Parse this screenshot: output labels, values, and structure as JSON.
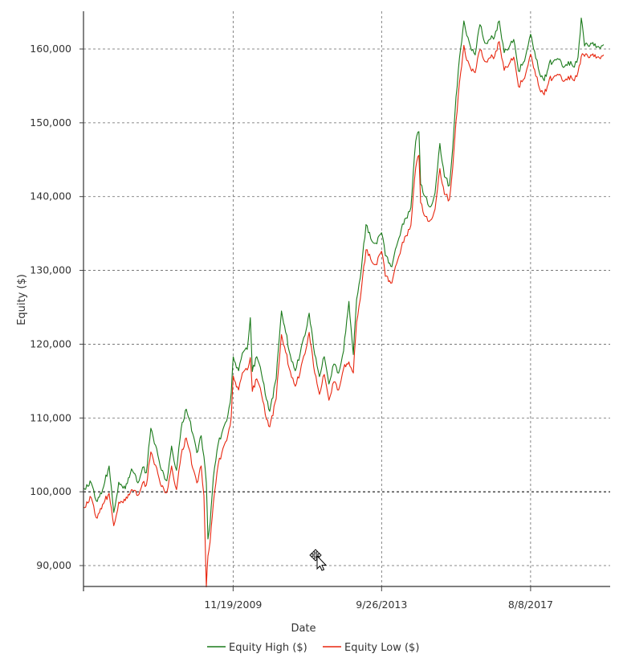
{
  "chart_data": {
    "type": "line",
    "xlabel": "Date",
    "ylabel": "Equity ($)",
    "x_ticks": [
      "11/19/2009",
      "9/26/2013",
      "8/8/2017"
    ],
    "y_ticks": [
      "90,000",
      "100,000",
      "110,000",
      "120,000",
      "130,000",
      "140,000",
      "150,000",
      "160,000"
    ],
    "y_tick_values": [
      90000,
      100000,
      110000,
      120000,
      130000,
      140000,
      150000,
      160000
    ],
    "x_tick_dates": [
      "2009-11-19",
      "2013-09-26",
      "2017-08-08"
    ],
    "xlim": [
      "2006-01-01",
      "2019-09-01"
    ],
    "ylim": [
      87000,
      165000
    ],
    "reference_line": 100000,
    "grid": true,
    "legend_position": "bottom",
    "series": [
      {
        "name": "Equity High ($)",
        "color": "#1a7a1a",
        "points": [
          [
            "2006-01-01",
            100500
          ],
          [
            "2006-03-15",
            101200
          ],
          [
            "2006-05-01",
            98800
          ],
          [
            "2006-07-01",
            100300
          ],
          [
            "2006-09-01",
            103500
          ],
          [
            "2006-10-15",
            97200
          ],
          [
            "2006-12-01",
            101300
          ],
          [
            "2007-02-01",
            100400
          ],
          [
            "2007-04-01",
            103100
          ],
          [
            "2007-06-01",
            101200
          ],
          [
            "2007-07-15",
            103300
          ],
          [
            "2007-08-20",
            102600
          ],
          [
            "2007-10-01",
            108600
          ],
          [
            "2007-11-15",
            106300
          ],
          [
            "2008-01-10",
            102900
          ],
          [
            "2008-03-01",
            101500
          ],
          [
            "2008-04-15",
            106200
          ],
          [
            "2008-06-01",
            102900
          ],
          [
            "2008-07-15",
            108600
          ],
          [
            "2008-09-01",
            111200
          ],
          [
            "2008-10-01",
            109800
          ],
          [
            "2008-11-01",
            107900
          ],
          [
            "2008-12-10",
            105300
          ],
          [
            "2009-01-20",
            107600
          ],
          [
            "2009-02-15",
            104800
          ],
          [
            "2009-03-10",
            101200
          ],
          [
            "2009-03-25",
            93600
          ],
          [
            "2009-04-15",
            95700
          ],
          [
            "2009-05-15",
            101900
          ],
          [
            "2009-07-01",
            106500
          ],
          [
            "2009-08-15",
            108500
          ],
          [
            "2009-10-01",
            110400
          ],
          [
            "2009-11-01",
            113400
          ],
          [
            "2009-11-20",
            118300
          ],
          [
            "2010-01-10",
            116400
          ],
          [
            "2010-02-15",
            118800
          ],
          [
            "2010-04-01",
            119300
          ],
          [
            "2010-05-01",
            123600
          ],
          [
            "2010-05-20",
            116300
          ],
          [
            "2010-07-01",
            118300
          ],
          [
            "2010-08-15",
            116000
          ],
          [
            "2010-10-01",
            112500
          ],
          [
            "2010-11-01",
            110900
          ],
          [
            "2011-01-01",
            115300
          ],
          [
            "2011-02-20",
            124500
          ],
          [
            "2011-04-01",
            121600
          ],
          [
            "2011-05-15",
            118500
          ],
          [
            "2011-07-01",
            116400
          ],
          [
            "2011-08-15",
            118600
          ],
          [
            "2011-10-01",
            121200
          ],
          [
            "2011-11-10",
            124200
          ],
          [
            "2012-01-01",
            118600
          ],
          [
            "2012-02-15",
            115600
          ],
          [
            "2012-04-01",
            118300
          ],
          [
            "2012-05-15",
            114600
          ],
          [
            "2012-07-01",
            117300
          ],
          [
            "2012-08-15",
            116100
          ],
          [
            "2012-10-01",
            119100
          ],
          [
            "2012-11-20",
            125800
          ],
          [
            "2013-01-01",
            118600
          ],
          [
            "2013-02-01",
            126100
          ],
          [
            "2013-03-20",
            130400
          ],
          [
            "2013-05-01",
            136200
          ],
          [
            "2013-06-15",
            134300
          ],
          [
            "2013-08-01",
            133700
          ],
          [
            "2013-09-26",
            135100
          ],
          [
            "2013-11-01",
            132000
          ],
          [
            "2014-01-01",
            130500
          ],
          [
            "2014-02-15",
            133300
          ],
          [
            "2014-04-01",
            135600
          ],
          [
            "2014-05-15",
            137100
          ],
          [
            "2014-07-01",
            138500
          ],
          [
            "2014-08-15",
            147500
          ],
          [
            "2014-09-15",
            148800
          ],
          [
            "2014-10-01",
            141700
          ],
          [
            "2014-11-15",
            140000
          ],
          [
            "2015-01-01",
            138600
          ],
          [
            "2015-02-15",
            140500
          ],
          [
            "2015-04-01",
            147200
          ],
          [
            "2015-05-15",
            142700
          ],
          [
            "2015-07-01",
            141500
          ],
          [
            "2015-08-01",
            146600
          ],
          [
            "2015-09-01",
            153500
          ],
          [
            "2015-10-15",
            160100
          ],
          [
            "2015-11-15",
            163800
          ],
          [
            "2015-12-01",
            162600
          ],
          [
            "2016-01-15",
            160400
          ],
          [
            "2016-03-01",
            159200
          ],
          [
            "2016-04-15",
            163300
          ],
          [
            "2016-06-01",
            160800
          ],
          [
            "2016-07-15",
            161300
          ],
          [
            "2016-09-01",
            161700
          ],
          [
            "2016-10-15",
            163800
          ],
          [
            "2016-12-01",
            159500
          ],
          [
            "2017-01-15",
            160200
          ],
          [
            "2017-03-01",
            161300
          ],
          [
            "2017-04-15",
            157000
          ],
          [
            "2017-06-01",
            158200
          ],
          [
            "2017-07-15",
            160400
          ],
          [
            "2017-08-08",
            162000
          ],
          [
            "2017-09-15",
            159700
          ],
          [
            "2017-11-01",
            156700
          ],
          [
            "2017-12-15",
            155700
          ],
          [
            "2018-02-01",
            158100
          ],
          [
            "2018-03-15",
            158400
          ],
          [
            "2018-05-01",
            158600
          ],
          [
            "2018-06-15",
            157500
          ],
          [
            "2018-08-01",
            158300
          ],
          [
            "2018-09-15",
            157600
          ],
          [
            "2018-11-01",
            158900
          ],
          [
            "2018-12-01",
            164200
          ],
          [
            "2019-01-01",
            160400
          ],
          [
            "2019-03-01",
            160800
          ],
          [
            "2019-05-01",
            160300
          ],
          [
            "2019-07-01",
            160600
          ]
        ]
      },
      {
        "name": "Equity Low ($)",
        "color": "#e8260f",
        "points": [
          [
            "2006-01-01",
            97900
          ],
          [
            "2006-03-15",
            99200
          ],
          [
            "2006-05-01",
            96500
          ],
          [
            "2006-07-01",
            98300
          ],
          [
            "2006-09-01",
            99800
          ],
          [
            "2006-10-15",
            95400
          ],
          [
            "2006-12-01",
            98600
          ],
          [
            "2007-02-01",
            98800
          ],
          [
            "2007-04-01",
            100300
          ],
          [
            "2007-06-01",
            99500
          ],
          [
            "2007-07-15",
            101200
          ],
          [
            "2007-08-20",
            100900
          ],
          [
            "2007-10-01",
            105400
          ],
          [
            "2007-11-15",
            103600
          ],
          [
            "2008-01-10",
            100700
          ],
          [
            "2008-03-01",
            99900
          ],
          [
            "2008-04-15",
            103500
          ],
          [
            "2008-06-01",
            100300
          ],
          [
            "2008-07-15",
            105000
          ],
          [
            "2008-09-01",
            107300
          ],
          [
            "2008-10-01",
            105700
          ],
          [
            "2008-11-01",
            103200
          ],
          [
            "2008-12-10",
            101200
          ],
          [
            "2009-01-20",
            103500
          ],
          [
            "2009-02-15",
            99500
          ],
          [
            "2009-03-10",
            87100
          ],
          [
            "2009-03-25",
            91300
          ],
          [
            "2009-04-15",
            93200
          ],
          [
            "2009-05-15",
            98400
          ],
          [
            "2009-07-01",
            103700
          ],
          [
            "2009-08-15",
            105900
          ],
          [
            "2009-10-01",
            107700
          ],
          [
            "2009-11-01",
            110100
          ],
          [
            "2009-11-20",
            115700
          ],
          [
            "2010-01-10",
            113800
          ],
          [
            "2010-02-15",
            116100
          ],
          [
            "2010-04-01",
            116500
          ],
          [
            "2010-05-01",
            118200
          ],
          [
            "2010-05-20",
            113600
          ],
          [
            "2010-07-01",
            115300
          ],
          [
            "2010-08-15",
            113200
          ],
          [
            "2010-10-01",
            109800
          ],
          [
            "2010-11-01",
            108800
          ],
          [
            "2011-01-01",
            112600
          ],
          [
            "2011-02-20",
            121300
          ],
          [
            "2011-04-01",
            118900
          ],
          [
            "2011-05-15",
            116300
          ],
          [
            "2011-07-01",
            114300
          ],
          [
            "2011-08-15",
            116100
          ],
          [
            "2011-10-01",
            118700
          ],
          [
            "2011-11-10",
            121600
          ],
          [
            "2012-01-01",
            116100
          ],
          [
            "2012-02-15",
            113200
          ],
          [
            "2012-04-01",
            115900
          ],
          [
            "2012-05-15",
            112400
          ],
          [
            "2012-07-01",
            114900
          ],
          [
            "2012-08-15",
            113800
          ],
          [
            "2012-10-01",
            116700
          ],
          [
            "2012-11-20",
            117600
          ],
          [
            "2013-01-01",
            116100
          ],
          [
            "2013-02-01",
            123000
          ],
          [
            "2013-03-20",
            127600
          ],
          [
            "2013-05-01",
            132800
          ],
          [
            "2013-06-15",
            131500
          ],
          [
            "2013-08-01",
            130800
          ],
          [
            "2013-09-26",
            132600
          ],
          [
            "2013-11-01",
            129200
          ],
          [
            "2014-01-01",
            128300
          ],
          [
            "2014-02-15",
            130900
          ],
          [
            "2014-04-01",
            133100
          ],
          [
            "2014-05-15",
            134700
          ],
          [
            "2014-07-01",
            136100
          ],
          [
            "2014-08-15",
            143900
          ],
          [
            "2014-09-15",
            145600
          ],
          [
            "2014-10-01",
            139200
          ],
          [
            "2014-11-15",
            137300
          ],
          [
            "2015-01-01",
            136800
          ],
          [
            "2015-02-15",
            138300
          ],
          [
            "2015-04-01",
            143800
          ],
          [
            "2015-05-15",
            140300
          ],
          [
            "2015-07-01",
            139600
          ],
          [
            "2015-08-01",
            143900
          ],
          [
            "2015-09-01",
            150200
          ],
          [
            "2015-10-15",
            156800
          ],
          [
            "2015-11-15",
            160500
          ],
          [
            "2015-12-01",
            159100
          ],
          [
            "2016-01-15",
            157500
          ],
          [
            "2016-03-01",
            156800
          ],
          [
            "2016-04-15",
            159900
          ],
          [
            "2016-06-01",
            158300
          ],
          [
            "2016-07-15",
            158800
          ],
          [
            "2016-09-01",
            159000
          ],
          [
            "2016-10-15",
            161000
          ],
          [
            "2016-12-01",
            157100
          ],
          [
            "2017-01-15",
            157900
          ],
          [
            "2017-03-01",
            158900
          ],
          [
            "2017-04-15",
            154900
          ],
          [
            "2017-06-01",
            155900
          ],
          [
            "2017-07-15",
            157800
          ],
          [
            "2017-08-08",
            159300
          ],
          [
            "2017-09-15",
            157200
          ],
          [
            "2017-11-01",
            154600
          ],
          [
            "2017-12-15",
            153800
          ],
          [
            "2018-02-01",
            155900
          ],
          [
            "2018-03-15",
            156200
          ],
          [
            "2018-05-01",
            156500
          ],
          [
            "2018-06-15",
            155600
          ],
          [
            "2018-08-01",
            156300
          ],
          [
            "2018-09-15",
            155800
          ],
          [
            "2018-11-01",
            156900
          ],
          [
            "2018-12-01",
            159000
          ],
          [
            "2019-01-01",
            159000
          ],
          [
            "2019-03-01",
            159200
          ],
          [
            "2019-05-01",
            158900
          ],
          [
            "2019-07-01",
            159200
          ]
        ]
      }
    ]
  }
}
